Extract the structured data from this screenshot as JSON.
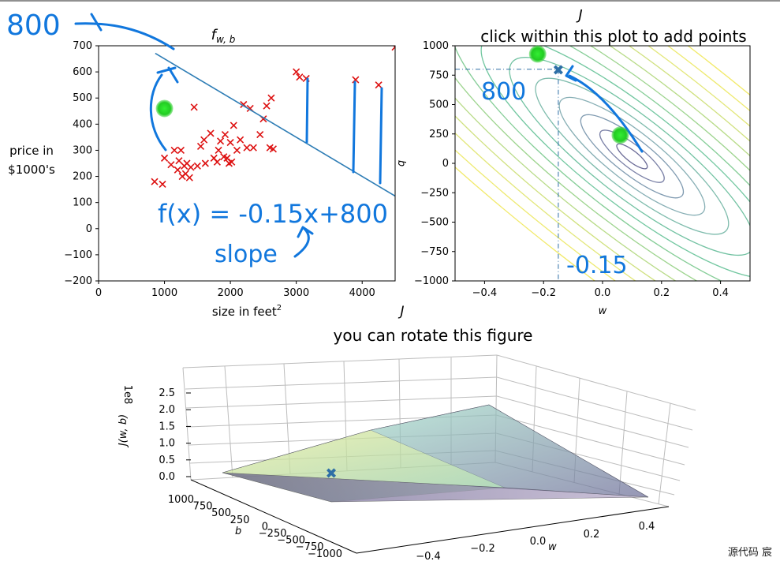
{
  "chart_data": [
    {
      "type": "scatter",
      "title": "f_w,b",
      "title_main": "f",
      "title_sub": "w, b",
      "xlabel": "size in feet",
      "xlabel_sup": "2",
      "ylabel_line1": "price in",
      "ylabel_line2": "$1000's",
      "xlim": [
        0,
        4500
      ],
      "ylim": [
        -200,
        700
      ],
      "xticks": [
        0,
        1000,
        2000,
        3000,
        4000
      ],
      "yticks": [
        -200,
        -100,
        0,
        100,
        200,
        300,
        400,
        500,
        600,
        700
      ],
      "points": [
        [
          850,
          180
        ],
        [
          970,
          170
        ],
        [
          1000,
          270
        ],
        [
          1100,
          245
        ],
        [
          1150,
          300
        ],
        [
          1200,
          225
        ],
        [
          1220,
          260
        ],
        [
          1250,
          300
        ],
        [
          1270,
          200
        ],
        [
          1300,
          240
        ],
        [
          1320,
          210
        ],
        [
          1340,
          250
        ],
        [
          1380,
          195
        ],
        [
          1400,
          235
        ],
        [
          1450,
          465
        ],
        [
          1500,
          240
        ],
        [
          1550,
          315
        ],
        [
          1600,
          340
        ],
        [
          1620,
          250
        ],
        [
          1700,
          365
        ],
        [
          1750,
          270
        ],
        [
          1800,
          255
        ],
        [
          1820,
          300
        ],
        [
          1850,
          335
        ],
        [
          1900,
          275
        ],
        [
          1920,
          360
        ],
        [
          1950,
          270
        ],
        [
          1980,
          250
        ],
        [
          2000,
          330
        ],
        [
          2020,
          255
        ],
        [
          2050,
          395
        ],
        [
          2100,
          300
        ],
        [
          2150,
          340
        ],
        [
          2200,
          475
        ],
        [
          2250,
          310
        ],
        [
          2300,
          460
        ],
        [
          2350,
          310
        ],
        [
          2450,
          360
        ],
        [
          2500,
          420
        ],
        [
          2550,
          470
        ],
        [
          2600,
          310
        ],
        [
          2620,
          500
        ],
        [
          2650,
          305
        ],
        [
          3000,
          600
        ],
        [
          3050,
          580
        ],
        [
          3150,
          575
        ],
        [
          3900,
          570
        ],
        [
          4250,
          550
        ],
        [
          4500,
          695
        ]
      ],
      "model_line": {
        "w": -0.15,
        "b": 800
      }
    },
    {
      "type": "contour",
      "title": "J",
      "subtitle": "click within this plot to add points",
      "xlabel": "w",
      "ylabel": "b",
      "xlim": [
        -0.5,
        0.5
      ],
      "ylim": [
        -1000,
        1000
      ],
      "xticks": [
        -0.4,
        -0.2,
        0.0,
        0.2,
        0.4
      ],
      "xtick_labels": [
        "−0.4",
        "−0.2",
        "0.0",
        "0.2",
        "0.4"
      ],
      "yticks": [
        -1000,
        -750,
        -500,
        -250,
        0,
        250,
        500,
        750,
        1000
      ],
      "ytick_labels": [
        "−1000",
        "−750",
        "−500",
        "−250",
        "0",
        "250",
        "500",
        "750",
        "1000"
      ],
      "minimum": [
        0.1,
        60
      ],
      "marker": {
        "w": -0.15,
        "b": 800
      },
      "green_points": [
        [
          -0.22,
          930
        ],
        [
          0.06,
          240
        ]
      ]
    },
    {
      "type": "surface3d",
      "title": "J",
      "subtitle": "you can rotate this figure",
      "zlabel": "J(w, b)",
      "zscale": "1e8",
      "xlabel": "w",
      "ylabel": "b",
      "xticks": [
        "−0.4",
        "−0.2",
        "0.0",
        "0.2",
        "0.4"
      ],
      "yticks": [
        "1000",
        "750",
        "500",
        "250",
        "0",
        "−250",
        "−500",
        "−750",
        "−1000"
      ],
      "zticks": [
        "0.0",
        "0.5",
        "1.0",
        "1.5",
        "2.0",
        "2.5"
      ],
      "marker": {
        "w": -0.15,
        "b": 800
      }
    }
  ],
  "annotations": {
    "top_left": "800",
    "equation": "f(x) = -0.15x+800",
    "slope": "slope",
    "intercept": "800",
    "w_value": "-0.15"
  },
  "watermark": "源代码  宸",
  "colors": {
    "points": "#dd1111",
    "model_line": "#2e7db5",
    "marker": "#2e6fa6",
    "green": "#22cc22",
    "ink": "#1177dd"
  }
}
